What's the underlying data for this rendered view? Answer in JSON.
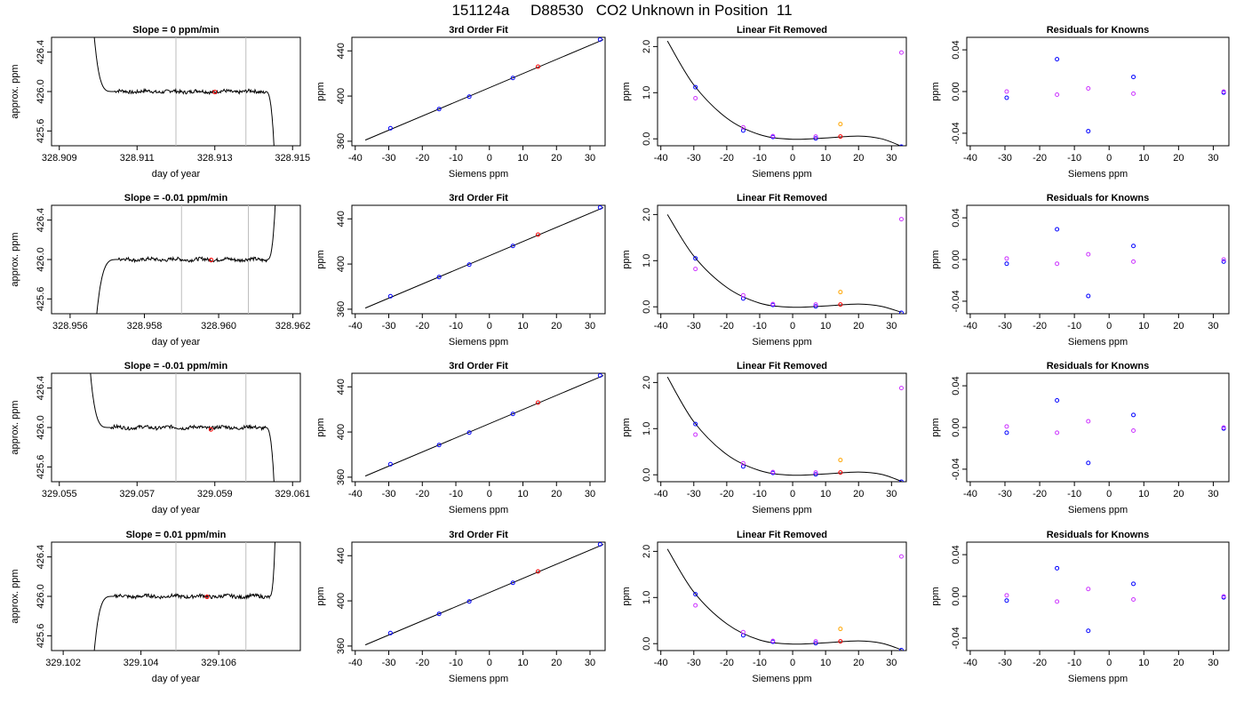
{
  "title": "151124a     D88530   CO2 Unknown in Position  11",
  "colors": {
    "trace": "#000000",
    "marker_window": "#bebebe",
    "unknown_point": "#ff0000",
    "standard": "#0000ff",
    "unknown": "#ff0000",
    "other": "#ffa500",
    "alt": "#cc33ff"
  },
  "chart_data": [
    {
      "type": "line",
      "title": "Slope =  0  ppm/min",
      "xlabel": "day of year",
      "ylabel": "approx. ppm",
      "xlim": [
        328.9088,
        328.9152
      ],
      "ylim": [
        425.45,
        426.55
      ],
      "xticks": [
        "328.909",
        "328.911",
        "328.913",
        "328.915"
      ],
      "yticks": [
        "425.6",
        "426.0",
        "426.4"
      ],
      "markers": [
        328.912,
        328.9138
      ],
      "start_trend": "down",
      "end_trend": "down",
      "x_start": 328.9098,
      "x_flat_start": 328.9104,
      "x_flat_end": 328.9143,
      "x_end": 328.9146,
      "level": 426.0,
      "unknown_point": [
        328.913,
        425.995
      ]
    },
    {
      "type": "line",
      "title": "Slope =  -0.01  ppm/min",
      "xlabel": "day of year",
      "ylabel": "approx. ppm",
      "xlim": [
        328.9555,
        328.9622
      ],
      "ylim": [
        425.45,
        426.55
      ],
      "xticks": [
        "328.956",
        "328.958",
        "328.960",
        "328.962"
      ],
      "yticks": [
        "425.6",
        "426.0",
        "426.4"
      ],
      "markers": [
        328.959,
        328.9608
      ],
      "start_trend": "up",
      "end_trend": "up",
      "x_start": 328.9566,
      "x_flat_start": 328.9573,
      "x_flat_end": 328.9613,
      "x_end": 328.9616,
      "level": 426.0,
      "unknown_point": [
        328.9598,
        425.995
      ]
    },
    {
      "type": "line",
      "title": "Slope =  -0.01  ppm/min",
      "xlabel": "day of year",
      "ylabel": "approx. ppm",
      "xlim": [
        329.0548,
        329.0612
      ],
      "ylim": [
        425.45,
        426.55
      ],
      "xticks": [
        "329.055",
        "329.057",
        "329.059",
        "329.061"
      ],
      "yticks": [
        "425.6",
        "426.0",
        "426.4"
      ],
      "markers": [
        329.058,
        329.0598
      ],
      "start_trend": "down",
      "end_trend": "down",
      "x_start": 329.0557,
      "x_flat_start": 329.0563,
      "x_flat_end": 329.0603,
      "x_end": 329.0606,
      "level": 426.0,
      "unknown_point": [
        329.0589,
        425.98
      ]
    },
    {
      "type": "line",
      "title": "Slope =  0.01  ppm/min",
      "xlabel": "day of year",
      "ylabel": "approx. ppm",
      "xlim": [
        329.1017,
        329.1081
      ],
      "ylim": [
        425.45,
        426.55
      ],
      "xticks": [
        "329.102",
        "329.104",
        "329.106"
      ],
      "yticks": [
        "425.6",
        "426.0",
        "426.4"
      ],
      "markers": [
        329.1049,
        329.1067
      ],
      "start_trend": "up",
      "end_trend": "up",
      "x_start": 329.1027,
      "x_flat_start": 329.1033,
      "x_flat_end": 329.1073,
      "x_end": 329.1075,
      "level": 426.0,
      "unknown_point": [
        329.1057,
        425.995
      ]
    },
    {
      "type": "scatter",
      "title": "3rd Order Fit",
      "xlabel": "Siemens ppm",
      "ylabel": "ppm",
      "xlim": [
        -41,
        34.5
      ],
      "ylim": [
        356,
        452
      ],
      "xticks": [
        "-40",
        "-30",
        "-20",
        "-10",
        "0",
        "10",
        "20",
        "30"
      ],
      "yticks": [
        "360",
        "400",
        "440"
      ],
      "fit_line": [
        [
          -37,
          361
        ],
        [
          34,
          450
        ]
      ],
      "points": [
        [
          -29.5,
          371.5,
          "standard"
        ],
        [
          -15,
          388.5,
          "standard"
        ],
        [
          -6,
          399.5,
          "standard"
        ],
        [
          7,
          416,
          "standard"
        ],
        [
          14.5,
          426,
          "unknown"
        ],
        [
          33,
          450,
          "standard"
        ]
      ]
    },
    {
      "type": "scatter",
      "title": "3rd Order Fit",
      "xlabel": "Siemens ppm",
      "ylabel": "ppm",
      "xlim": [
        -41,
        34.5
      ],
      "ylim": [
        356,
        452
      ],
      "xticks": [
        "-40",
        "-30",
        "-20",
        "-10",
        "0",
        "10",
        "20",
        "30"
      ],
      "yticks": [
        "360",
        "400",
        "440"
      ],
      "fit_line": [
        [
          -37,
          361
        ],
        [
          34,
          450
        ]
      ],
      "points": [
        [
          -29.5,
          371.5,
          "standard"
        ],
        [
          -15,
          388.5,
          "standard"
        ],
        [
          -6,
          399.5,
          "standard"
        ],
        [
          7,
          416,
          "standard"
        ],
        [
          14.5,
          426,
          "unknown"
        ],
        [
          33,
          450,
          "standard"
        ]
      ]
    },
    {
      "type": "scatter",
      "title": "3rd Order Fit",
      "xlabel": "Siemens ppm",
      "ylabel": "ppm",
      "xlim": [
        -41,
        34.5
      ],
      "ylim": [
        356,
        452
      ],
      "xticks": [
        "-40",
        "-30",
        "-20",
        "-10",
        "0",
        "10",
        "20",
        "30"
      ],
      "yticks": [
        "360",
        "400",
        "440"
      ],
      "fit_line": [
        [
          -37,
          361
        ],
        [
          34,
          450
        ]
      ],
      "points": [
        [
          -29.5,
          371.5,
          "standard"
        ],
        [
          -15,
          388.5,
          "standard"
        ],
        [
          -6,
          399.5,
          "standard"
        ],
        [
          7,
          416,
          "standard"
        ],
        [
          14.5,
          426,
          "unknown"
        ],
        [
          33,
          450,
          "standard"
        ]
      ]
    },
    {
      "type": "scatter",
      "title": "3rd Order Fit",
      "xlabel": "Siemens ppm",
      "ylabel": "ppm",
      "xlim": [
        -41,
        34.5
      ],
      "ylim": [
        356,
        452
      ],
      "xticks": [
        "-40",
        "-30",
        "-20",
        "-10",
        "0",
        "10",
        "20",
        "30"
      ],
      "yticks": [
        "360",
        "400",
        "440"
      ],
      "fit_line": [
        [
          -37,
          361
        ],
        [
          34,
          450
        ]
      ],
      "points": [
        [
          -29.5,
          371.5,
          "standard"
        ],
        [
          -15,
          388.5,
          "standard"
        ],
        [
          -6,
          399.5,
          "standard"
        ],
        [
          7,
          416,
          "standard"
        ],
        [
          14.5,
          426,
          "unknown"
        ],
        [
          33,
          450,
          "standard"
        ]
      ]
    },
    {
      "type": "scatter",
      "title": "Linear Fit Removed",
      "xlabel": "Siemens ppm",
      "ylabel": "ppm",
      "xlim": [
        -41,
        34.5
      ],
      "ylim": [
        -0.15,
        2.2
      ],
      "xticks": [
        "-40",
        "-30",
        "-20",
        "-10",
        "0",
        "10",
        "20",
        "30"
      ],
      "yticks": [
        "0.0",
        "1.0",
        "2.0"
      ],
      "fit_curve": [
        [
          -38,
          2.12
        ],
        [
          -30,
          1.17
        ],
        [
          -20,
          0.45
        ],
        [
          -10,
          0.09
        ],
        [
          0,
          -0.01
        ],
        [
          10,
          0.02
        ],
        [
          20,
          0.06
        ],
        [
          27,
          0.0
        ],
        [
          33,
          -0.16
        ]
      ],
      "points": [
        [
          -29.5,
          1.12,
          "standard"
        ],
        [
          -29.5,
          0.88,
          "alt"
        ],
        [
          -15,
          0.18,
          "standard"
        ],
        [
          -15,
          0.25,
          "alt"
        ],
        [
          -6,
          0.04,
          "standard"
        ],
        [
          -6,
          0.06,
          "alt"
        ],
        [
          7,
          0.01,
          "standard"
        ],
        [
          7,
          0.05,
          "alt"
        ],
        [
          14.5,
          0.32,
          "other"
        ],
        [
          14.5,
          0.05,
          "unknown"
        ],
        [
          33,
          1.87,
          "alt"
        ],
        [
          33,
          -0.17,
          "standard"
        ]
      ]
    },
    {
      "type": "scatter",
      "title": "Linear Fit Removed",
      "xlabel": "Siemens ppm",
      "ylabel": "ppm",
      "xlim": [
        -41,
        34.5
      ],
      "ylim": [
        -0.15,
        2.2
      ],
      "xticks": [
        "-40",
        "-30",
        "-20",
        "-10",
        "0",
        "10",
        "20",
        "30"
      ],
      "yticks": [
        "0.0",
        "1.0",
        "2.0"
      ],
      "fit_curve": [
        [
          -38,
          2.0
        ],
        [
          -30,
          1.1
        ],
        [
          -20,
          0.42
        ],
        [
          -10,
          0.08
        ],
        [
          0,
          -0.01
        ],
        [
          10,
          0.02
        ],
        [
          20,
          0.06
        ],
        [
          27,
          0.01
        ],
        [
          33,
          -0.12
        ]
      ],
      "points": [
        [
          -29.5,
          1.05,
          "standard"
        ],
        [
          -29.5,
          0.82,
          "alt"
        ],
        [
          -15,
          0.18,
          "standard"
        ],
        [
          -15,
          0.25,
          "alt"
        ],
        [
          -6,
          0.04,
          "standard"
        ],
        [
          -6,
          0.06,
          "alt"
        ],
        [
          7,
          0.01,
          "standard"
        ],
        [
          7,
          0.05,
          "alt"
        ],
        [
          14.5,
          0.32,
          "other"
        ],
        [
          14.5,
          0.05,
          "unknown"
        ],
        [
          33,
          1.9,
          "alt"
        ],
        [
          33,
          -0.13,
          "standard"
        ]
      ]
    },
    {
      "type": "scatter",
      "title": "Linear Fit Removed",
      "xlabel": "Siemens ppm",
      "ylabel": "ppm",
      "xlim": [
        -41,
        34.5
      ],
      "ylim": [
        -0.15,
        2.2
      ],
      "xticks": [
        "-40",
        "-30",
        "-20",
        "-10",
        "0",
        "10",
        "20",
        "30"
      ],
      "yticks": [
        "0.0",
        "1.0",
        "2.0"
      ],
      "fit_curve": [
        [
          -38,
          2.12
        ],
        [
          -30,
          1.15
        ],
        [
          -20,
          0.44
        ],
        [
          -10,
          0.09
        ],
        [
          0,
          -0.01
        ],
        [
          10,
          0.02
        ],
        [
          20,
          0.06
        ],
        [
          27,
          0.01
        ],
        [
          33,
          -0.14
        ]
      ],
      "points": [
        [
          -29.5,
          1.1,
          "standard"
        ],
        [
          -29.5,
          0.87,
          "alt"
        ],
        [
          -15,
          0.18,
          "standard"
        ],
        [
          -15,
          0.25,
          "alt"
        ],
        [
          -6,
          0.04,
          "standard"
        ],
        [
          -6,
          0.06,
          "alt"
        ],
        [
          7,
          0.01,
          "standard"
        ],
        [
          7,
          0.05,
          "alt"
        ],
        [
          14.5,
          0.32,
          "other"
        ],
        [
          14.5,
          0.05,
          "unknown"
        ],
        [
          33,
          1.88,
          "alt"
        ],
        [
          33,
          -0.15,
          "standard"
        ]
      ]
    },
    {
      "type": "scatter",
      "title": "Linear Fit Removed",
      "xlabel": "Siemens ppm",
      "ylabel": "ppm",
      "xlim": [
        -41,
        34.5
      ],
      "ylim": [
        -0.15,
        2.2
      ],
      "xticks": [
        "-40",
        "-30",
        "-20",
        "-10",
        "0",
        "10",
        "20",
        "30"
      ],
      "yticks": [
        "0.0",
        "1.0",
        "2.0"
      ],
      "fit_curve": [
        [
          -38,
          2.05
        ],
        [
          -30,
          1.12
        ],
        [
          -20,
          0.43
        ],
        [
          -10,
          0.08
        ],
        [
          0,
          -0.01
        ],
        [
          10,
          0.02
        ],
        [
          20,
          0.06
        ],
        [
          27,
          0.01
        ],
        [
          33,
          -0.13
        ]
      ],
      "points": [
        [
          -29.5,
          1.07,
          "standard"
        ],
        [
          -29.5,
          0.83,
          "alt"
        ],
        [
          -15,
          0.18,
          "standard"
        ],
        [
          -15,
          0.25,
          "alt"
        ],
        [
          -6,
          0.04,
          "standard"
        ],
        [
          -6,
          0.06,
          "alt"
        ],
        [
          7,
          0.01,
          "standard"
        ],
        [
          7,
          0.05,
          "alt"
        ],
        [
          14.5,
          0.32,
          "other"
        ],
        [
          14.5,
          0.05,
          "unknown"
        ],
        [
          33,
          1.89,
          "alt"
        ],
        [
          33,
          -0.14,
          "standard"
        ]
      ]
    },
    {
      "type": "scatter",
      "title": "Residuals for Knowns",
      "xlabel": "Siemens ppm",
      "ylabel": "ppm",
      "xlim": [
        -41,
        34.5
      ],
      "ylim": [
        -0.052,
        0.052
      ],
      "xticks": [
        "-40",
        "-30",
        "-20",
        "-10",
        "0",
        "10",
        "20",
        "30"
      ],
      "yticks": [
        "-0.04",
        "0.00",
        "0.04"
      ],
      "points": [
        [
          -29.5,
          -0.006,
          "standard"
        ],
        [
          -29.5,
          0.0,
          "alt"
        ],
        [
          -15,
          0.031,
          "standard"
        ],
        [
          -15,
          -0.003,
          "alt"
        ],
        [
          -6,
          -0.038,
          "standard"
        ],
        [
          -6,
          0.003,
          "alt"
        ],
        [
          7,
          0.014,
          "standard"
        ],
        [
          7,
          -0.002,
          "alt"
        ],
        [
          33,
          -0.001,
          "standard"
        ],
        [
          33,
          0.0,
          "alt"
        ]
      ]
    },
    {
      "type": "scatter",
      "title": "Residuals for Knowns",
      "xlabel": "Siemens ppm",
      "ylabel": "ppm",
      "xlim": [
        -41,
        34.5
      ],
      "ylim": [
        -0.052,
        0.052
      ],
      "xticks": [
        "-40",
        "-30",
        "-20",
        "-10",
        "0",
        "10",
        "20",
        "30"
      ],
      "yticks": [
        "-0.04",
        "0.00",
        "0.04"
      ],
      "points": [
        [
          -29.5,
          -0.004,
          "standard"
        ],
        [
          -29.5,
          0.001,
          "alt"
        ],
        [
          -15,
          0.029,
          "standard"
        ],
        [
          -15,
          -0.004,
          "alt"
        ],
        [
          -6,
          -0.035,
          "standard"
        ],
        [
          -6,
          0.005,
          "alt"
        ],
        [
          7,
          0.013,
          "standard"
        ],
        [
          7,
          -0.002,
          "alt"
        ],
        [
          33,
          -0.002,
          "standard"
        ],
        [
          33,
          0.0,
          "alt"
        ]
      ]
    },
    {
      "type": "scatter",
      "title": "Residuals for Knowns",
      "xlabel": "Siemens ppm",
      "ylabel": "ppm",
      "xlim": [
        -41,
        34.5
      ],
      "ylim": [
        -0.052,
        0.052
      ],
      "xticks": [
        "-40",
        "-30",
        "-20",
        "-10",
        "0",
        "10",
        "20",
        "30"
      ],
      "yticks": [
        "-0.04",
        "0.00",
        "0.04"
      ],
      "points": [
        [
          -29.5,
          -0.005,
          "standard"
        ],
        [
          -29.5,
          0.001,
          "alt"
        ],
        [
          -15,
          0.026,
          "standard"
        ],
        [
          -15,
          -0.005,
          "alt"
        ],
        [
          -6,
          -0.034,
          "standard"
        ],
        [
          -6,
          0.006,
          "alt"
        ],
        [
          7,
          0.012,
          "standard"
        ],
        [
          7,
          -0.003,
          "alt"
        ],
        [
          33,
          -0.001,
          "standard"
        ],
        [
          33,
          0.0,
          "alt"
        ]
      ]
    },
    {
      "type": "scatter",
      "title": "Residuals for Knowns",
      "xlabel": "Siemens ppm",
      "ylabel": "ppm",
      "xlim": [
        -41,
        34.5
      ],
      "ylim": [
        -0.052,
        0.052
      ],
      "xticks": [
        "-40",
        "-30",
        "-20",
        "-10",
        "0",
        "10",
        "20",
        "30"
      ],
      "yticks": [
        "-0.04",
        "0.00",
        "0.04"
      ],
      "points": [
        [
          -29.5,
          -0.004,
          "standard"
        ],
        [
          -29.5,
          0.001,
          "alt"
        ],
        [
          -15,
          0.027,
          "standard"
        ],
        [
          -15,
          -0.005,
          "alt"
        ],
        [
          -6,
          -0.033,
          "standard"
        ],
        [
          -6,
          0.007,
          "alt"
        ],
        [
          7,
          0.012,
          "standard"
        ],
        [
          7,
          -0.003,
          "alt"
        ],
        [
          33,
          -0.001,
          "standard"
        ],
        [
          33,
          0.0,
          "alt"
        ]
      ]
    }
  ]
}
